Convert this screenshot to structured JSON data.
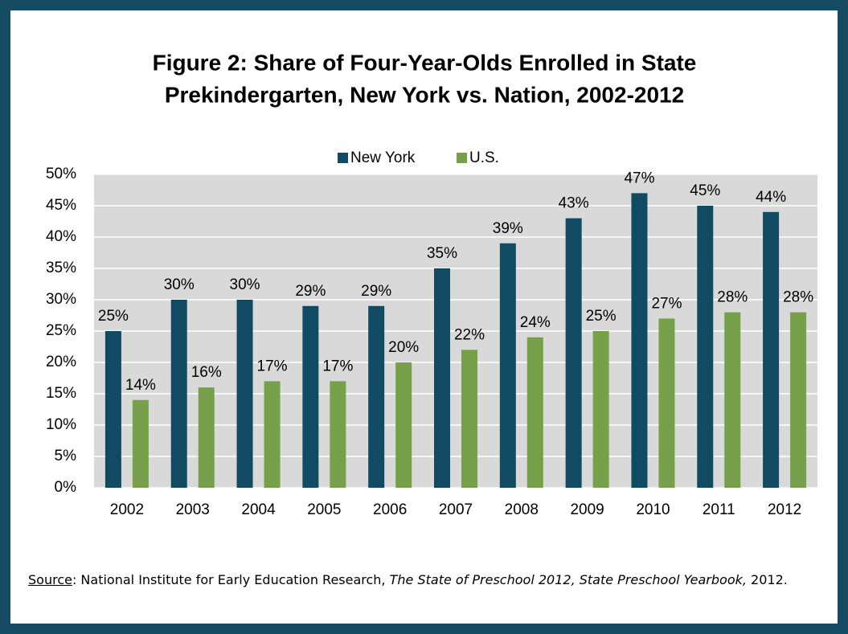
{
  "chart_data": {
    "type": "bar",
    "title": [
      "Figure 2: Share of Four-Year-Olds Enrolled in State",
      "Prekindergarten, New York vs. Nation, 2002-2012"
    ],
    "categories": [
      "2002",
      "2003",
      "2004",
      "2005",
      "2006",
      "2007",
      "2008",
      "2009",
      "2010",
      "2011",
      "2012"
    ],
    "series": [
      {
        "name": "New York",
        "color": "#114b63",
        "values": [
          25,
          30,
          30,
          29,
          29,
          35,
          39,
          43,
          47,
          45,
          44
        ],
        "value_labels": [
          "25%",
          "30%",
          "30%",
          "29%",
          "29%",
          "35%",
          "39%",
          "43%",
          "47%",
          "45%",
          "44%"
        ]
      },
      {
        "name": "U.S.",
        "color": "#77a04b",
        "values": [
          14,
          16,
          17,
          17,
          20,
          22,
          24,
          25,
          27,
          28,
          28
        ],
        "value_labels": [
          "14%",
          "16%",
          "17%",
          "17%",
          "20%",
          "22%",
          "24%",
          "25%",
          "27%",
          "28%",
          "28%"
        ]
      }
    ],
    "ylim": [
      0,
      50
    ],
    "yticks": [
      {
        "value": 0,
        "label": "0%"
      },
      {
        "value": 5,
        "label": "5%"
      },
      {
        "value": 10,
        "label": "10%"
      },
      {
        "value": 15,
        "label": "15%"
      },
      {
        "value": 20,
        "label": "20%"
      },
      {
        "value": 25,
        "label": "25%"
      },
      {
        "value": 30,
        "label": "30%"
      },
      {
        "value": 35,
        "label": "35%"
      },
      {
        "value": 40,
        "label": "40%"
      },
      {
        "value": 45,
        "label": "45%"
      },
      {
        "value": 50,
        "label": "50%"
      }
    ],
    "grid": true,
    "legend": "top",
    "source": {
      "label": "Source",
      "prefix": ": National Institute for Early Education Research, ",
      "title": "The State of Preschool 2012, State Preschool Yearbook,",
      "suffix": " 2012."
    }
  }
}
